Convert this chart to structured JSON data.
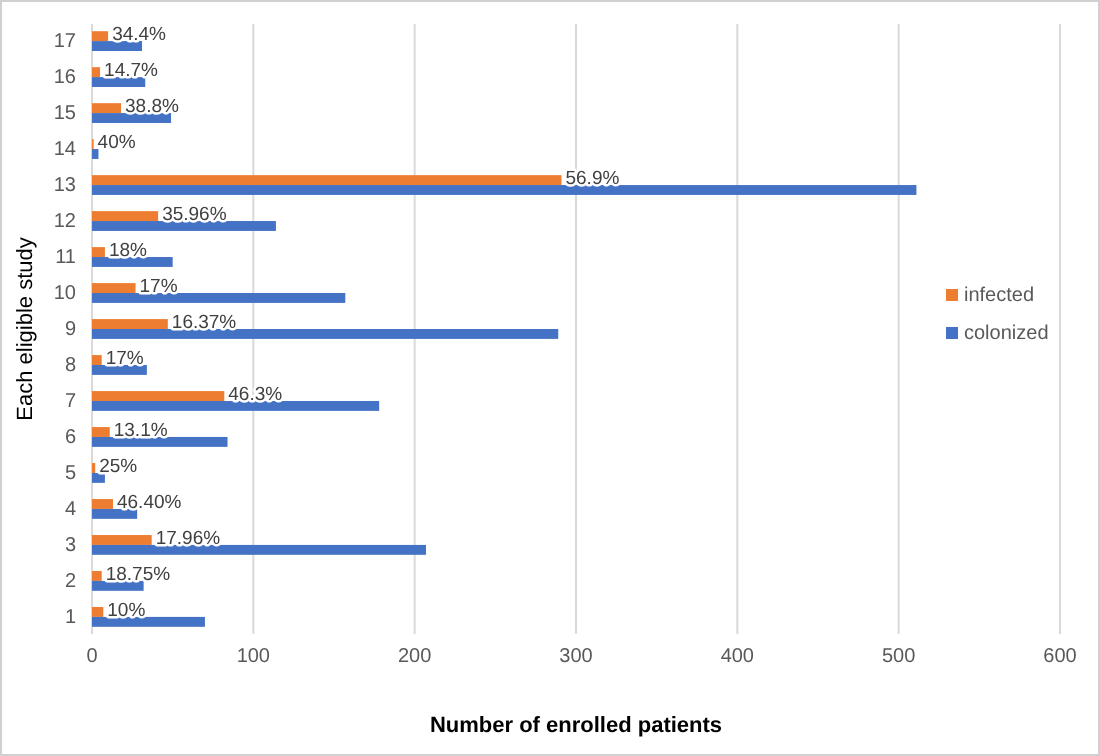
{
  "chart_data": {
    "type": "bar",
    "orientation": "horizontal",
    "xlabel": "Number of enrolled patients",
    "ylabel": "Each eligible study",
    "categories": [
      "17",
      "16",
      "15",
      "14",
      "13",
      "12",
      "11",
      "10",
      "9",
      "8",
      "7",
      "6",
      "5",
      "4",
      "3",
      "2",
      "1"
    ],
    "series": [
      {
        "name": "infected",
        "color": "#ed7d31",
        "values": [
          10,
          5,
          18,
          1,
          291,
          41,
          8,
          27,
          47,
          6,
          82,
          11,
          2,
          13,
          37,
          6,
          7
        ]
      },
      {
        "name": "colonized",
        "color": "#4472c4",
        "values": [
          31,
          33,
          49,
          4,
          511,
          114,
          50,
          157,
          289,
          34,
          178,
          84,
          8,
          28,
          207,
          32,
          70
        ]
      }
    ],
    "annotations": [
      {
        "text": "34.4%",
        "x": 10,
        "y": "17"
      },
      {
        "text": "14.7%",
        "x": 5,
        "y": "16"
      },
      {
        "text": "38.8%",
        "x": 18,
        "y": "15"
      },
      {
        "text": "40%",
        "x": 1,
        "y": "14"
      },
      {
        "text": "56.9%",
        "x": 291,
        "y": "13"
      },
      {
        "text": "35.96%",
        "x": 41,
        "y": "12"
      },
      {
        "text": "18%",
        "x": 8,
        "y": "11"
      },
      {
        "text": "17%",
        "x": 27,
        "y": "10"
      },
      {
        "text": "16.37%",
        "x": 47,
        "y": "9"
      },
      {
        "text": "17%",
        "x": 6,
        "y": "8"
      },
      {
        "text": "46.3%",
        "x": 82,
        "y": "7"
      },
      {
        "text": "13.1%",
        "x": 11,
        "y": "6"
      },
      {
        "text": "25%",
        "x": 2,
        "y": "5"
      },
      {
        "text": "46.40%",
        "x": 13,
        "y": "4"
      },
      {
        "text": "17.96%",
        "x": 37,
        "y": "3"
      },
      {
        "text": "18.75%",
        "x": 6,
        "y": "2"
      },
      {
        "text": "10%",
        "x": 7,
        "y": "1"
      }
    ],
    "xlim": [
      0,
      600
    ],
    "xticks": [
      0,
      100,
      200,
      300,
      400,
      500,
      600
    ],
    "grid": "x",
    "legend": "right"
  }
}
